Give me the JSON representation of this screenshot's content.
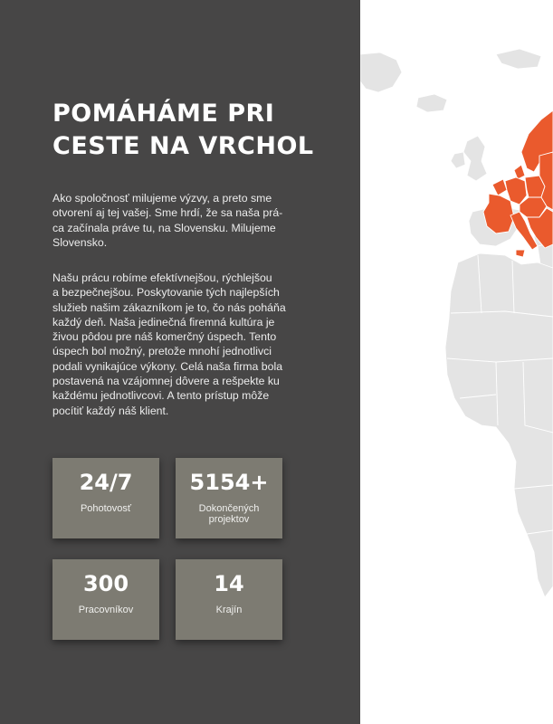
{
  "headline": {
    "line1": "POMÁHÁME PRI",
    "line2": "CESTE NA VRCHOL"
  },
  "intro": {
    "paragraph1_lines": [
      "Ako spoločnosť milujeme výzvy, a preto sme",
      "otvorení aj tej vašej. Sme hrdí, že sa naša prá-",
      "ca začínala práve tu, na Slovensku.  Milujeme",
      "Slovensko."
    ],
    "paragraph2_lines": [
      "Našu prácu robíme efektívnejšou, rýchlejšou",
      "a bezpečnejšou. Poskytovanie tých najlepších",
      "služieb našim zákazníkom je to, čo nás poháňa",
      "každý deň. Naša jedinečná firemná kultúra je",
      "živou pôdou pre náš komerčný úspech. Tento",
      "úspech bol možný, pretože mnohí jednotlivci",
      "podali vynikajúce výkony. Celá naša firma bola",
      "postavená na vzájomnej dôvere a rešpekte ku",
      "každému jednotlivcovi. A tento prístup môže",
      "pocítiť každý náš klient."
    ]
  },
  "stats": [
    {
      "value": "24/7",
      "label": "Pohotovosť"
    },
    {
      "value": "5154+",
      "label": "Dokončených projektov"
    },
    {
      "value": "300",
      "label": "Pracovníkov"
    },
    {
      "value": "14",
      "label": "Krajín"
    }
  ],
  "map": {
    "icon": "world-map-illustration",
    "colors": {
      "land": "#e4e4e4",
      "borders": "#ffffff",
      "highlight": "#ea5a2d",
      "background": "#ffffff"
    }
  },
  "colors": {
    "panel": "#474646",
    "card": "#7d7b72",
    "text": "#ffffff"
  }
}
